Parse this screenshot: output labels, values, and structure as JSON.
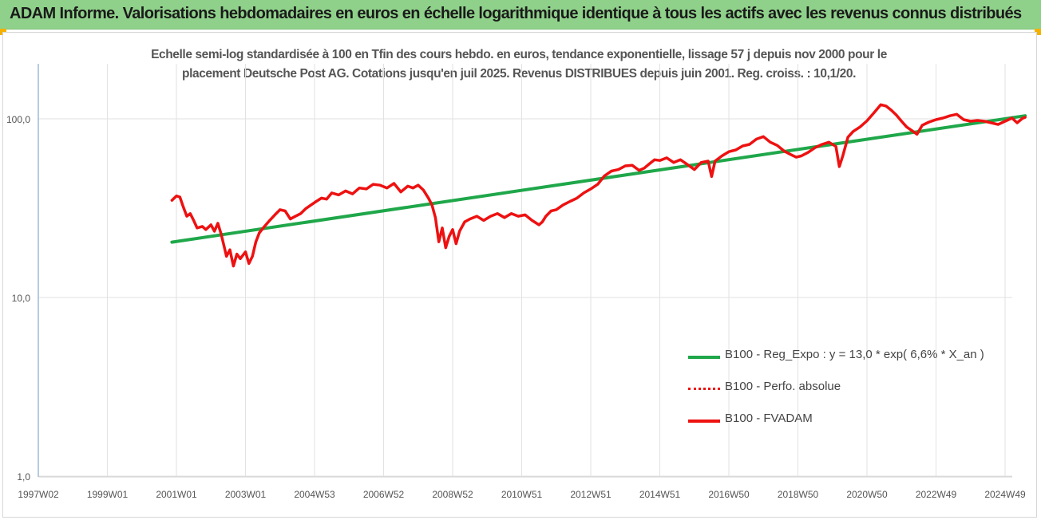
{
  "header": {
    "title": "ADAM Informe. Valorisations hebdomadaires en euros en échelle logarithmique identique à tous les actifs avec les revenus connus distribués"
  },
  "colors": {
    "banner": "#8fd18a",
    "accent_corner": "#f3b100",
    "regression": "#1fa74a",
    "fvadam": "#ee1111",
    "perf": "#ee1111",
    "grid": "#e2e2e2",
    "axis_text": "#555555"
  },
  "chart_data": {
    "type": "line",
    "title_line1": "Echelle semi-log standardisée à 100 en Tfin des cours hebdo. en euros, tendance exponentielle, lissage 57 j depuis nov 2000 pour le",
    "title_line2": "placement Deutsche Post AG. Cotations jusqu'en juil 2025. Revenus DISTRIBUES depuis juin 2001. Reg. croiss. : 10,1/20.",
    "xlabel": "",
    "ylabel": "",
    "y_scale": "log",
    "ylim": [
      1,
      200
    ],
    "y_ticks": [
      {
        "value": 1,
        "label": "1,0"
      },
      {
        "value": 10,
        "label": "10,0"
      },
      {
        "value": 100,
        "label": "100,0"
      }
    ],
    "x_range": [
      1997.0,
      2025.6
    ],
    "x_ticks": [
      {
        "value": 1997.0,
        "label": "1997W02"
      },
      {
        "value": 1999.0,
        "label": "1999W01"
      },
      {
        "value": 2001.0,
        "label": "2001W01"
      },
      {
        "value": 2003.0,
        "label": "2003W01"
      },
      {
        "value": 2005.0,
        "label": "2004W53"
      },
      {
        "value": 2007.0,
        "label": "2006W52"
      },
      {
        "value": 2009.0,
        "label": "2008W52"
      },
      {
        "value": 2011.0,
        "label": "2010W51"
      },
      {
        "value": 2013.0,
        "label": "2012W51"
      },
      {
        "value": 2015.0,
        "label": "2014W51"
      },
      {
        "value": 2017.0,
        "label": "2016W50"
      },
      {
        "value": 2019.0,
        "label": "2018W50"
      },
      {
        "value": 2021.0,
        "label": "2020W50"
      },
      {
        "value": 2023.0,
        "label": "2022W49"
      },
      {
        "value": 2025.0,
        "label": "2024W49"
      }
    ],
    "grid": true,
    "legend_position": "bottom-right",
    "series": [
      {
        "name": "B100 - Reg_Expo : y = 13,0 * exp( 6,6% *  X_an )",
        "style": "solid-green",
        "x": [
          2000.87,
          2025.58
        ],
        "y": [
          20.4,
          104.0
        ]
      },
      {
        "name": "B100 - Perfo. absolue",
        "style": "dotted-red",
        "x": [],
        "y": []
      },
      {
        "name": "B100 - FVADAM",
        "style": "solid-red",
        "x": [
          2000.87,
          2001.0,
          2001.1,
          2001.2,
          2001.3,
          2001.4,
          2001.5,
          2001.6,
          2001.75,
          2001.85,
          2002.0,
          2002.1,
          2002.2,
          2002.3,
          2002.45,
          2002.55,
          2002.65,
          2002.75,
          2002.85,
          2003.0,
          2003.1,
          2003.2,
          2003.3,
          2003.4,
          2003.55,
          2003.7,
          2003.85,
          2004.0,
          2004.15,
          2004.3,
          2004.45,
          2004.6,
          2004.75,
          2004.9,
          2005.05,
          2005.2,
          2005.35,
          2005.5,
          2005.7,
          2005.9,
          2006.1,
          2006.3,
          2006.5,
          2006.7,
          2006.9,
          2007.1,
          2007.3,
          2007.5,
          2007.7,
          2007.85,
          2008.0,
          2008.15,
          2008.3,
          2008.4,
          2008.5,
          2008.6,
          2008.7,
          2008.8,
          2008.9,
          2009.0,
          2009.1,
          2009.2,
          2009.35,
          2009.5,
          2009.7,
          2009.9,
          2010.1,
          2010.3,
          2010.5,
          2010.7,
          2010.9,
          2011.1,
          2011.3,
          2011.5,
          2011.6,
          2011.7,
          2011.85,
          2012.0,
          2012.2,
          2012.4,
          2012.6,
          2012.8,
          2013.0,
          2013.2,
          2013.4,
          2013.6,
          2013.8,
          2014.0,
          2014.2,
          2014.4,
          2014.55,
          2014.7,
          2014.85,
          2015.0,
          2015.2,
          2015.4,
          2015.6,
          2015.8,
          2016.0,
          2016.2,
          2016.4,
          2016.5,
          2016.6,
          2016.8,
          2017.0,
          2017.2,
          2017.4,
          2017.6,
          2017.8,
          2018.0,
          2018.2,
          2018.4,
          2018.6,
          2018.8,
          2018.95,
          2019.1,
          2019.3,
          2019.5,
          2019.7,
          2019.9,
          2020.1,
          2020.2,
          2020.3,
          2020.45,
          2020.6,
          2020.8,
          2021.0,
          2021.2,
          2021.4,
          2021.55,
          2021.7,
          2021.85,
          2022.0,
          2022.15,
          2022.3,
          2022.45,
          2022.6,
          2022.8,
          2023.0,
          2023.2,
          2023.4,
          2023.6,
          2023.8,
          2024.0,
          2024.2,
          2024.4,
          2024.6,
          2024.8,
          2025.0,
          2025.2,
          2025.35,
          2025.5,
          2025.58
        ],
        "y": [
          35.0,
          37.0,
          36.5,
          32.0,
          28.5,
          29.5,
          27.0,
          24.5,
          25.0,
          24.0,
          25.5,
          23.5,
          26.0,
          22.5,
          17.0,
          18.5,
          15.0,
          17.5,
          16.5,
          18.0,
          15.5,
          17.0,
          20.5,
          23.0,
          25.0,
          27.0,
          29.0,
          31.0,
          30.5,
          27.5,
          28.5,
          29.5,
          31.5,
          33.0,
          34.5,
          36.0,
          35.5,
          38.5,
          37.5,
          39.5,
          38.0,
          41.0,
          40.5,
          43.0,
          42.5,
          41.0,
          43.5,
          39.0,
          42.0,
          41.0,
          42.5,
          40.0,
          36.0,
          33.0,
          28.0,
          20.5,
          24.5,
          19.0,
          22.0,
          24.0,
          20.0,
          23.5,
          26.5,
          27.5,
          28.5,
          27.0,
          28.5,
          29.5,
          28.0,
          29.5,
          28.5,
          29.0,
          27.0,
          25.5,
          26.5,
          28.5,
          30.5,
          31.0,
          33.0,
          34.5,
          36.0,
          38.5,
          40.5,
          43.0,
          48.0,
          51.0,
          52.0,
          54.5,
          55.0,
          51.5,
          53.0,
          56.0,
          59.0,
          58.5,
          60.5,
          57.0,
          59.0,
          55.5,
          52.0,
          57.0,
          58.0,
          47.5,
          58.0,
          62.0,
          65.5,
          67.0,
          70.5,
          72.0,
          77.0,
          79.5,
          74.0,
          71.0,
          66.0,
          63.0,
          61.0,
          62.0,
          65.0,
          69.0,
          72.0,
          74.0,
          70.0,
          54.0,
          62.0,
          79.0,
          85.0,
          90.0,
          97.5,
          108.0,
          120.0,
          118.0,
          112.0,
          105.0,
          97.0,
          90.0,
          86.0,
          82.0,
          92.0,
          96.0,
          99.0,
          101.0,
          104.0,
          106.0,
          99.0,
          97.0,
          98.0,
          97.0,
          95.0,
          93.0,
          97.0,
          101.0,
          95.0,
          100.5,
          102.0
        ]
      }
    ]
  }
}
